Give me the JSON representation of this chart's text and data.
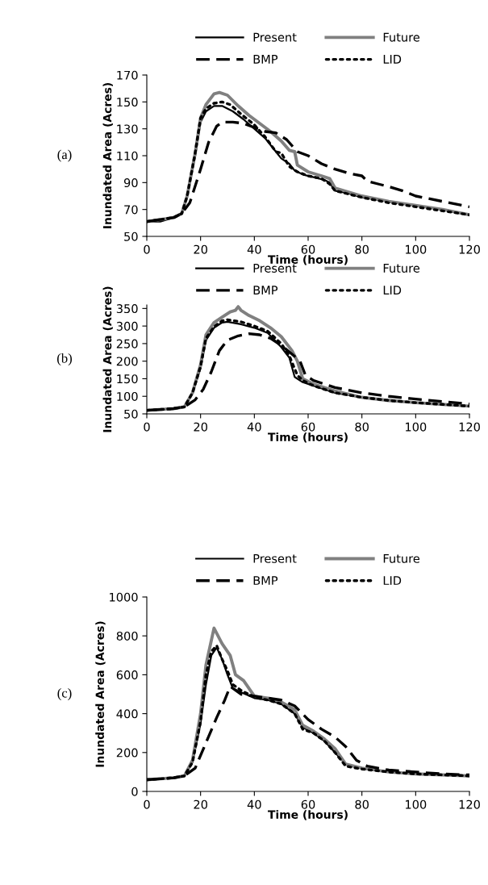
{
  "chart_data": [
    {
      "type": "line",
      "xlabel": "Time (hours)",
      "ylabel": "Inundated Area (Acres)",
      "annotations": [
        "(a)"
      ],
      "xlim": [
        0,
        120
      ],
      "xticks": [
        0,
        20,
        40,
        60,
        80,
        100,
        120
      ],
      "ylim": [
        50,
        170
      ],
      "yticks": [
        50,
        70,
        90,
        110,
        130,
        150,
        170
      ],
      "grid": false,
      "legend": "top",
      "marker": "none",
      "series": [
        {
          "name": "Present",
          "color": "#000000",
          "line_style": "solid",
          "x": [
            0,
            5,
            10,
            13,
            15,
            18,
            20,
            22,
            25,
            28,
            32,
            36,
            40,
            44,
            48,
            50,
            53,
            55,
            58,
            62,
            66,
            68,
            70,
            75,
            80,
            90,
            100,
            110,
            120
          ],
          "values": [
            61,
            61,
            64,
            67,
            80,
            110,
            135,
            143,
            147,
            147,
            143,
            137,
            130,
            123,
            113,
            108,
            104,
            99,
            96,
            94,
            92,
            90,
            84,
            82,
            79,
            76,
            73,
            70,
            66
          ]
        },
        {
          "name": "Future",
          "color": "#808080",
          "line_style": "solid",
          "x": [
            0,
            10,
            13,
            15,
            18,
            20,
            22,
            25,
            27,
            30,
            34,
            38,
            42,
            46,
            50,
            53,
            55,
            56,
            60,
            65,
            68,
            70,
            75,
            80,
            90,
            100,
            110,
            120
          ],
          "values": [
            61,
            64,
            67,
            80,
            112,
            138,
            148,
            156,
            157,
            155,
            147,
            140,
            134,
            128,
            121,
            114,
            113,
            103,
            98,
            95,
            93,
            86,
            83,
            80,
            76,
            73,
            70,
            66
          ]
        },
        {
          "name": "BMP",
          "color": "#000000",
          "line_style": "dashed",
          "x": [
            0,
            10,
            13,
            16,
            20,
            23,
            26,
            28,
            32,
            36,
            40,
            44,
            48,
            52,
            56,
            60,
            65,
            70,
            75,
            80,
            82,
            86,
            90,
            95,
            100,
            110,
            120
          ],
          "values": [
            61,
            64,
            67,
            75,
            100,
            120,
            132,
            135,
            135,
            134,
            131,
            128,
            127,
            122,
            113,
            110,
            104,
            100,
            97,
            95,
            91,
            89,
            87,
            84,
            80,
            76,
            72
          ]
        },
        {
          "name": "LID",
          "color": "#000000",
          "line_style": "dotted",
          "x": [
            0,
            10,
            13,
            15,
            18,
            20,
            22,
            25,
            28,
            31,
            35,
            40,
            44,
            48,
            50,
            53,
            56,
            60,
            65,
            68,
            70,
            80,
            90,
            100,
            110,
            120
          ],
          "values": [
            61,
            64,
            67,
            80,
            112,
            138,
            145,
            149,
            150,
            148,
            141,
            133,
            124,
            113,
            112,
            102,
            98,
            95,
            93,
            89,
            84,
            79,
            75,
            72,
            69,
            66
          ]
        }
      ]
    },
    {
      "type": "line",
      "xlabel": "Time (hours)",
      "ylabel": "Inundated Area (Acres)",
      "annotations": [
        "(b)"
      ],
      "xlim": [
        0,
        120
      ],
      "xticks": [
        0,
        20,
        40,
        60,
        80,
        100,
        120
      ],
      "ylim": [
        50,
        360
      ],
      "yticks": [
        50,
        100,
        150,
        200,
        250,
        300,
        350
      ],
      "grid": false,
      "legend": "top",
      "marker": "none",
      "series": [
        {
          "name": "Present",
          "color": "#000000",
          "line_style": "solid",
          "x": [
            0,
            10,
            14,
            17,
            20,
            22,
            25,
            28,
            30,
            35,
            40,
            45,
            50,
            53,
            55,
            58,
            62,
            66,
            70,
            80,
            90,
            100,
            110,
            120
          ],
          "values": [
            60,
            65,
            70,
            110,
            180,
            260,
            295,
            310,
            312,
            305,
            295,
            280,
            240,
            210,
            155,
            140,
            130,
            120,
            110,
            97,
            90,
            82,
            77,
            72
          ]
        },
        {
          "name": "Future",
          "color": "#808080",
          "line_style": "solid",
          "x": [
            0,
            10,
            14,
            17,
            20,
            22,
            25,
            28,
            31,
            33,
            34,
            35,
            38,
            42,
            46,
            50,
            54,
            56,
            58,
            62,
            70,
            80,
            90,
            100,
            110,
            120
          ],
          "values": [
            60,
            65,
            70,
            110,
            190,
            275,
            310,
            325,
            340,
            345,
            355,
            345,
            330,
            315,
            295,
            270,
            230,
            200,
            150,
            135,
            115,
            97,
            88,
            82,
            77,
            72
          ]
        },
        {
          "name": "BMP",
          "color": "#000000",
          "line_style": "dashed",
          "x": [
            0,
            10,
            14,
            18,
            21,
            24,
            27,
            30,
            34,
            38,
            42,
            46,
            50,
            54,
            57,
            59,
            62,
            66,
            70,
            80,
            90,
            100,
            110,
            120
          ],
          "values": [
            60,
            65,
            70,
            90,
            120,
            170,
            230,
            260,
            272,
            278,
            275,
            265,
            245,
            220,
            200,
            160,
            145,
            135,
            125,
            110,
            100,
            92,
            85,
            78
          ]
        },
        {
          "name": "LID",
          "color": "#000000",
          "line_style": "dotted",
          "x": [
            0,
            10,
            14,
            17,
            20,
            22,
            25,
            28,
            30,
            35,
            40,
            45,
            50,
            53,
            56,
            58,
            62,
            70,
            80,
            90,
            100,
            110,
            120
          ],
          "values": [
            60,
            65,
            70,
            110,
            185,
            265,
            298,
            315,
            318,
            312,
            300,
            285,
            250,
            215,
            160,
            145,
            130,
            110,
            97,
            88,
            82,
            77,
            72
          ]
        }
      ]
    },
    {
      "type": "line",
      "xlabel": "Time (hours)",
      "ylabel": "Inundated Area (Acres)",
      "annotations": [
        "(c)"
      ],
      "xlim": [
        0,
        120
      ],
      "xticks": [
        0,
        20,
        40,
        60,
        80,
        100,
        120
      ],
      "ylim": [
        0,
        1000
      ],
      "yticks": [
        0,
        200,
        400,
        600,
        800,
        1000
      ],
      "grid": false,
      "legend": "top",
      "marker": "none",
      "series": [
        {
          "name": "Present",
          "color": "#000000",
          "line_style": "solid",
          "x": [
            0,
            10,
            14,
            17,
            20,
            22,
            24,
            26,
            28,
            30,
            32,
            35,
            40,
            45,
            50,
            55,
            58,
            62,
            66,
            70,
            74,
            80,
            90,
            100,
            110,
            120
          ],
          "values": [
            60,
            70,
            80,
            150,
            350,
            550,
            700,
            740,
            680,
            600,
            530,
            510,
            480,
            470,
            450,
            400,
            330,
            300,
            260,
            200,
            140,
            120,
            100,
            90,
            85,
            80
          ]
        },
        {
          "name": "Future",
          "color": "#808080",
          "line_style": "solid",
          "x": [
            0,
            10,
            14,
            17,
            20,
            22,
            25,
            28,
            31,
            33,
            36,
            40,
            45,
            50,
            55,
            58,
            62,
            66,
            70,
            74,
            80,
            90,
            100,
            110,
            120
          ],
          "values": [
            60,
            70,
            80,
            160,
            400,
            650,
            840,
            760,
            700,
            600,
            570,
            490,
            480,
            460,
            420,
            340,
            310,
            270,
            220,
            140,
            120,
            100,
            90,
            85,
            80
          ]
        },
        {
          "name": "BMP",
          "color": "#000000",
          "line_style": "dashed",
          "x": [
            0,
            10,
            14,
            18,
            22,
            26,
            29,
            31,
            35,
            40,
            45,
            50,
            55,
            60,
            65,
            70,
            74,
            78,
            82,
            90,
            100,
            110,
            120
          ],
          "values": [
            60,
            70,
            80,
            120,
            250,
            380,
            470,
            540,
            500,
            490,
            480,
            470,
            440,
            370,
            320,
            280,
            230,
            160,
            130,
            110,
            100,
            90,
            85
          ]
        },
        {
          "name": "LID",
          "color": "#000000",
          "line_style": "dotted",
          "x": [
            0,
            10,
            14,
            17,
            20,
            22,
            24,
            26,
            28,
            30,
            32,
            35,
            40,
            45,
            50,
            55,
            58,
            62,
            66,
            70,
            74,
            80,
            90,
            100,
            110,
            120
          ],
          "values": [
            60,
            70,
            80,
            150,
            360,
            600,
            720,
            750,
            680,
            620,
            550,
            520,
            485,
            470,
            450,
            400,
            320,
            300,
            260,
            200,
            130,
            115,
            100,
            90,
            85,
            80
          ]
        }
      ]
    }
  ]
}
